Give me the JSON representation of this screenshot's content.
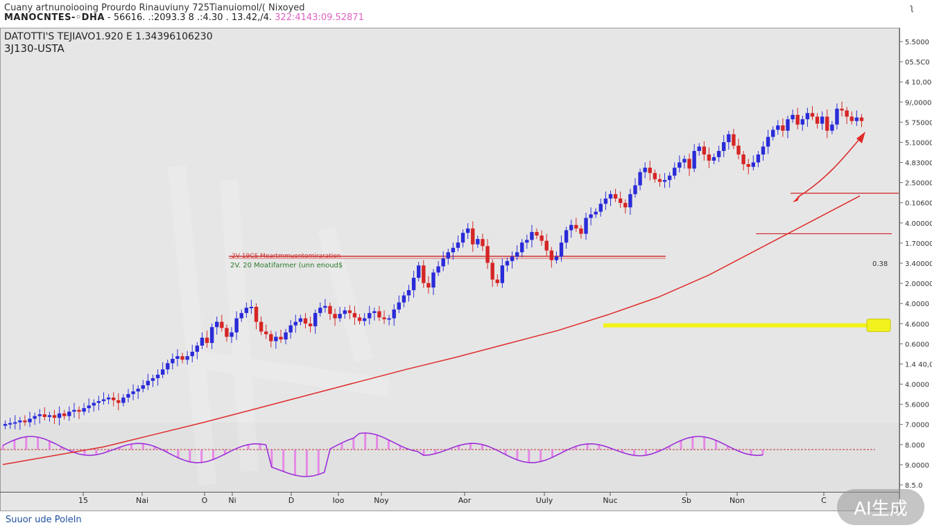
{
  "header": {
    "line1": "Cuany artnunoiooing  Prourdo  Rinauviuny  725Tianuiomol/( Nixoyed",
    "symbol": "MANOCNTES-◦DHA",
    "quote_main": " -  56616. .:2093.3 8 .:4.30 . 13.42,/4.",
    "quote_highlight": "322:4143:09.52871"
  },
  "top_right_glyph": "ʅ",
  "chart_data": {
    "type": "candlestick",
    "title": "DATOTTI'S TEJIAVO1.920  E  1.34396106230",
    "subtitle": "3J130-USTA",
    "y_ticks": [
      "5.5000",
      "05.5C0",
      "4 10,000",
      "9/,0000",
      "5 75000",
      "5.10000",
      "4.8300C",
      "2.5000C",
      "0.10600",
      "4.0000C",
      "1.70000",
      "3.40000",
      "2.00000",
      "4.0000",
      "4.6000",
      "0.6000",
      "1.4 40,0",
      "4.0000",
      "5.6000",
      "7.0000",
      "8.000",
      "9.0000",
      "8.5.0"
    ],
    "x_ticks": [
      "15",
      "Nai",
      "O",
      "Ni",
      "D",
      "Ioo",
      "Noy",
      "Aor",
      "Uuly",
      "Nuc",
      "Sb",
      "Non",
      "C"
    ],
    "close": [
      2.46,
      2.47,
      2.48,
      2.5,
      2.48,
      2.52,
      2.55,
      2.57,
      2.54,
      2.56,
      2.53,
      2.58,
      2.55,
      2.6,
      2.62,
      2.6,
      2.64,
      2.67,
      2.7,
      2.72,
      2.74,
      2.76,
      2.73,
      2.7,
      2.76,
      2.8,
      2.83,
      2.86,
      2.9,
      2.95,
      2.98,
      3.02,
      3.08,
      3.15,
      3.2,
      3.23,
      3.19,
      3.23,
      3.28,
      3.35,
      3.44,
      3.38,
      3.56,
      3.62,
      3.55,
      3.45,
      3.5,
      3.66,
      3.72,
      3.78,
      3.79,
      3.62,
      3.51,
      3.48,
      3.4,
      3.45,
      3.42,
      3.5,
      3.58,
      3.62,
      3.66,
      3.6,
      3.57,
      3.72,
      3.78,
      3.8,
      3.71,
      3.66,
      3.71,
      3.75,
      3.72,
      3.67,
      3.63,
      3.66,
      3.72,
      3.74,
      3.67,
      3.65,
      3.66,
      3.76,
      3.84,
      3.92,
      3.98,
      4.12,
      4.26,
      4.06,
      4.01,
      4.18,
      4.25,
      4.34,
      4.41,
      4.46,
      4.52,
      4.63,
      4.68,
      4.5,
      4.56,
      4.48,
      4.29,
      4.1,
      4.06,
      4.26,
      4.31,
      4.36,
      4.41,
      4.52,
      4.55,
      4.64,
      4.6,
      4.54,
      4.43,
      4.32,
      4.36,
      4.52,
      4.66,
      4.72,
      4.68,
      4.62,
      4.8,
      4.84,
      4.87,
      4.96,
      5.02,
      5.07,
      5.02,
      4.97,
      4.92,
      5.07,
      5.17,
      5.32,
      5.37,
      5.31,
      5.24,
      5.21,
      5.23,
      5.28,
      5.37,
      5.43,
      5.47,
      5.36,
      5.56,
      5.61,
      5.52,
      5.45,
      5.49,
      5.56,
      5.66,
      5.75,
      5.62,
      5.52,
      5.41,
      5.38,
      5.43,
      5.52,
      5.61,
      5.72,
      5.8,
      5.85,
      5.79,
      5.92,
      5.97,
      5.86,
      5.92,
      5.99,
      5.95,
      5.87,
      5.95,
      5.79,
      5.86,
      6.04,
      6.02,
      5.95,
      5.9,
      5.94,
      5.9
    ],
    "ma_line": [
      2.0,
      2.1,
      2.2,
      2.34,
      2.48,
      2.63,
      2.78,
      2.93,
      3.08,
      3.22,
      3.37,
      3.52,
      3.7,
      3.9,
      4.15,
      4.45,
      4.75,
      5.05
    ],
    "resistance_levels": [
      5.08,
      4.62
    ],
    "support_level": 3.58,
    "support_label": "0.38",
    "annotations": [
      "2V 19CS  Moartmmuontomiraration",
      "2V. 20  Moatifarmer (unn enoud$"
    ],
    "ylim": [
      0,
      10
    ]
  },
  "footer": {
    "link_text": "Suuor ude Poleln"
  },
  "watermark": {
    "text": "AI生成"
  }
}
